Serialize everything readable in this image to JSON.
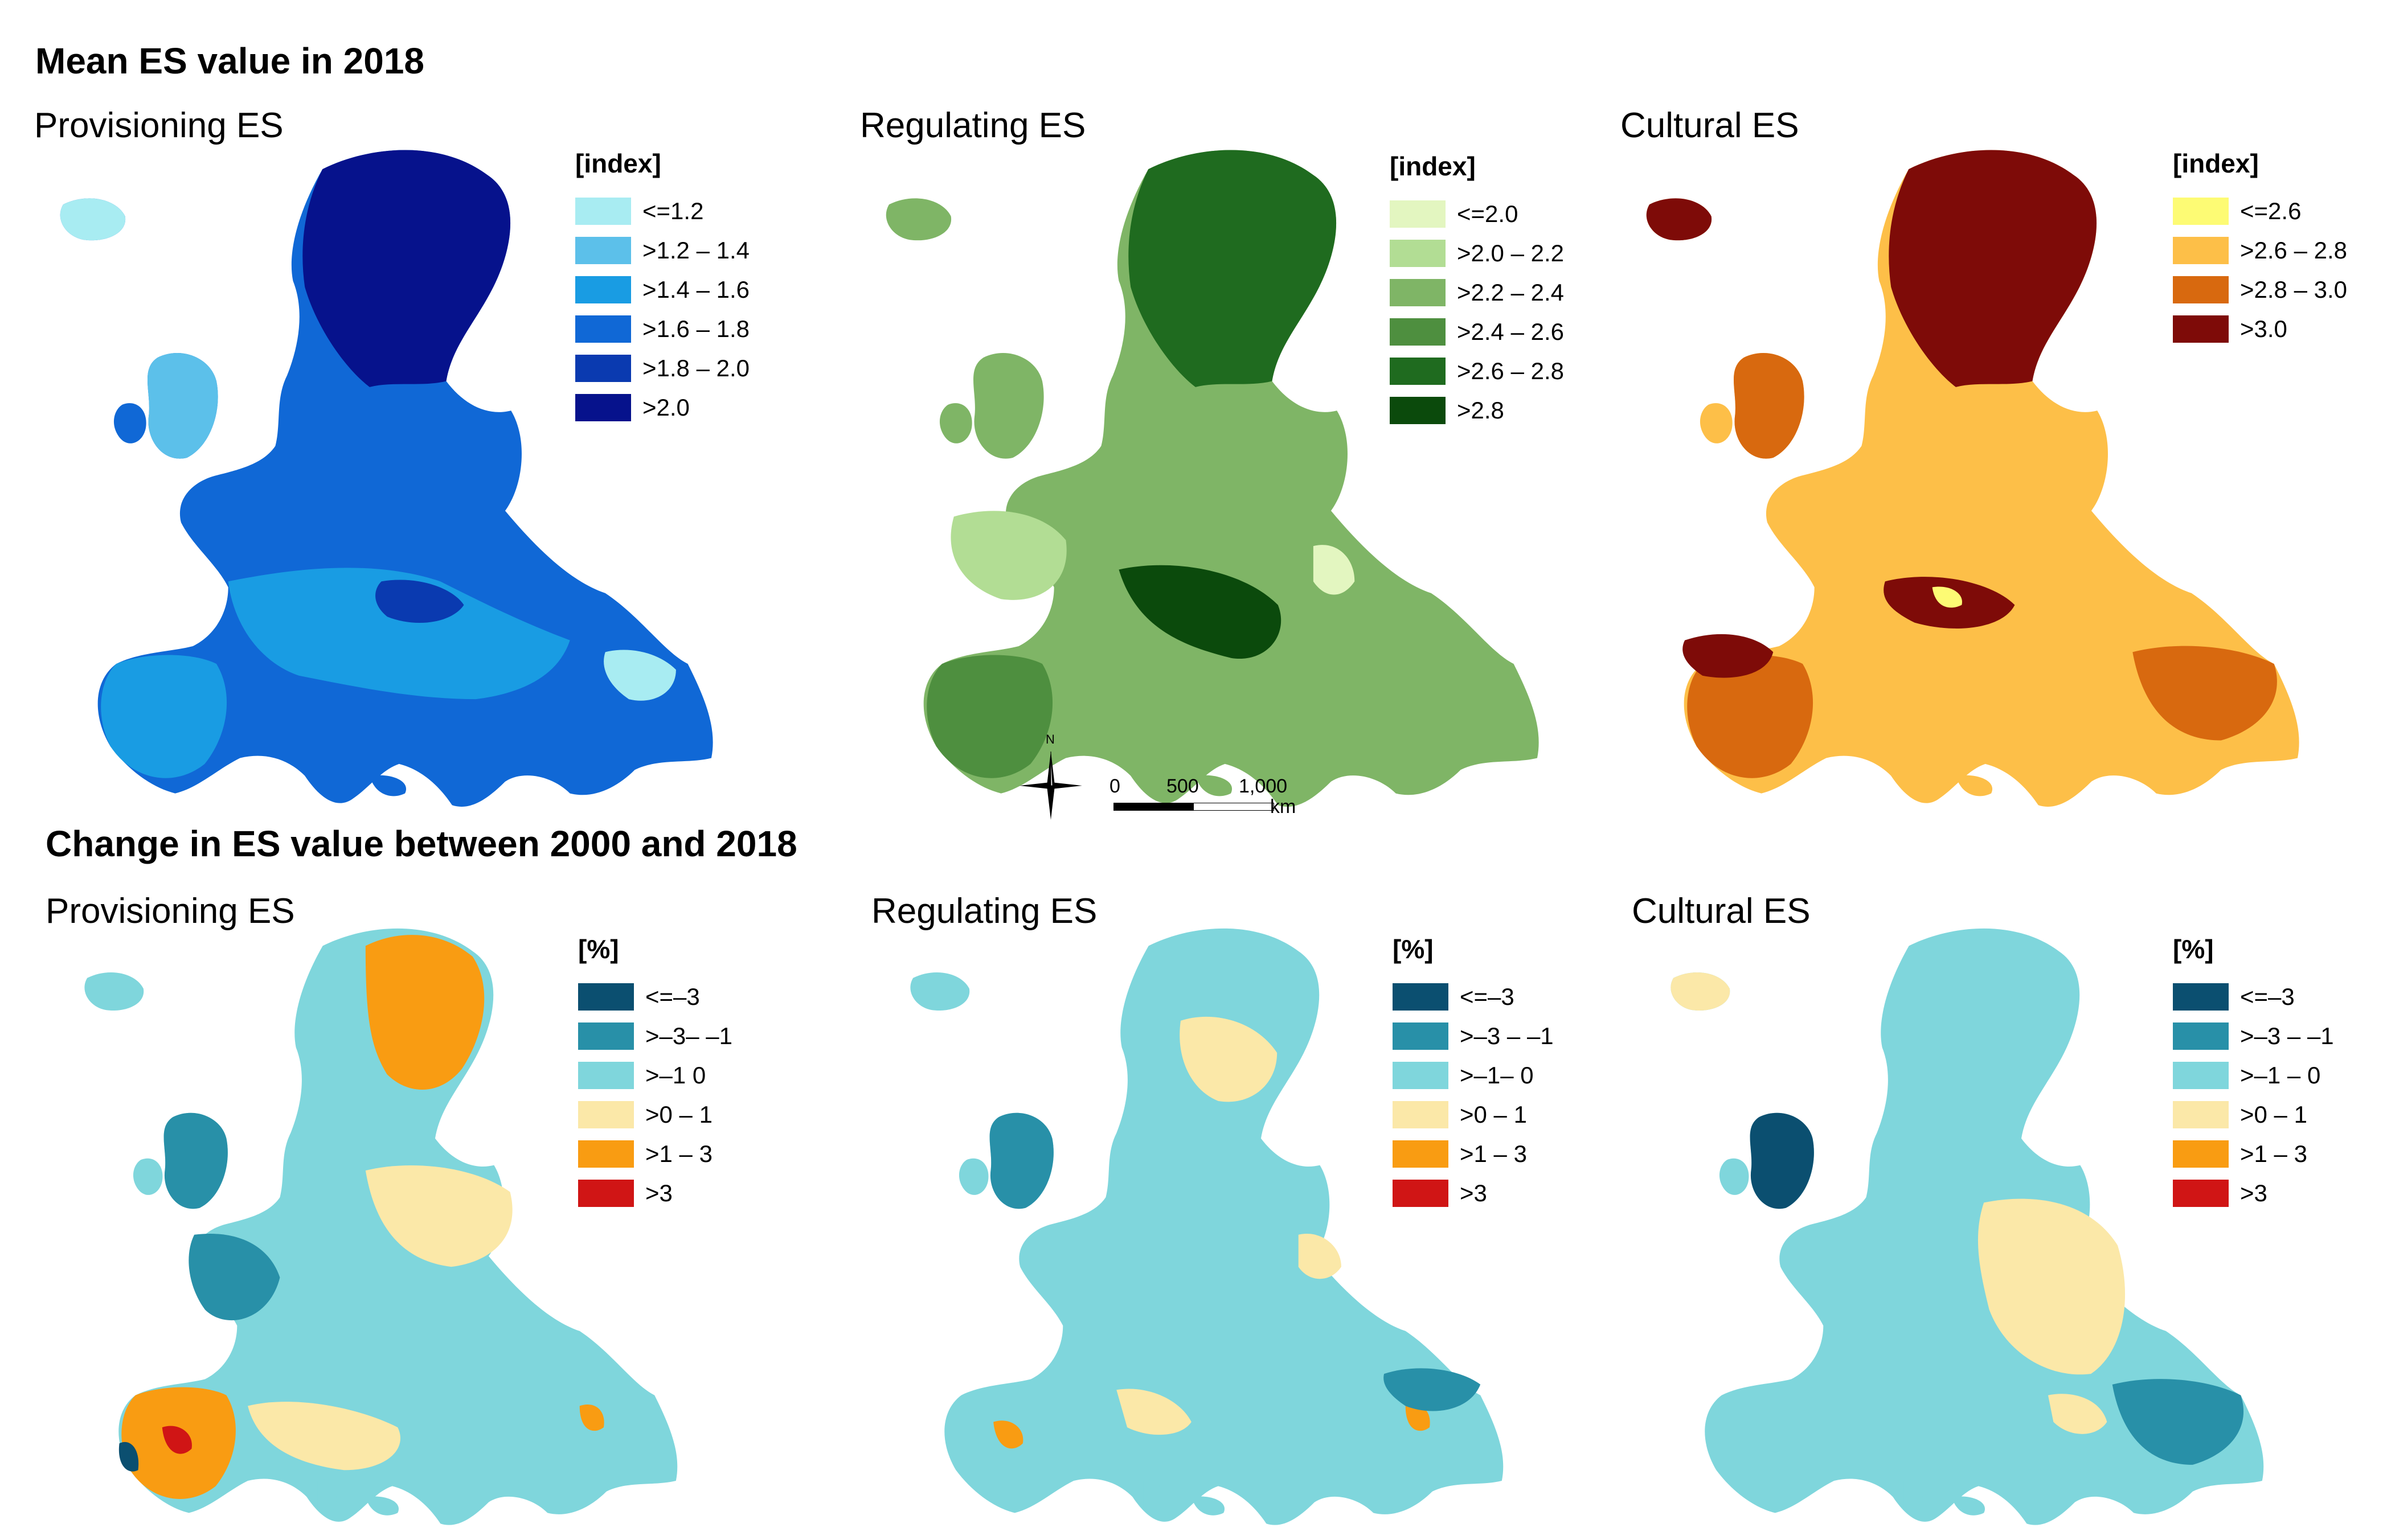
{
  "figure": {
    "title_top": "Mean ES value in 2018",
    "title_bottom": "Change in ES value between 2000 and 2018"
  },
  "colors": {
    "provisioning_2018": [
      "#a8ecf2",
      "#5cc0ea",
      "#199ce3",
      "#1068d6",
      "#0a3ab0",
      "#06128c"
    ],
    "regulating_2018": [
      "#e3f6c0",
      "#b2dd94",
      "#7fb566",
      "#4e8f3f",
      "#1f6b1f",
      "#0b4a0c"
    ],
    "cultural_2018": [
      "#fdfb74",
      "#fdbf48",
      "#d8690f",
      "#7e0b08"
    ],
    "change": [
      "#0b4f70",
      "#2890a8",
      "#7fd6dc",
      "#fbe8a8",
      "#f99c12",
      "#d01515"
    ]
  },
  "top_row": {
    "legend_header": "[index]",
    "panels": [
      {
        "title": "Provisioning ES",
        "legend": [
          "<=1.2",
          ">1.2 – 1.4",
          ">1.4 – 1.6",
          ">1.6 – 1.8",
          ">1.8 – 2.0",
          ">2.0"
        ]
      },
      {
        "title": "Regulating ES",
        "legend": [
          "<=2.0",
          ">2.0 – 2.2",
          ">2.2 – 2.4",
          ">2.4 – 2.6",
          ">2.6 – 2.8",
          ">2.8"
        ]
      },
      {
        "title": "Cultural ES",
        "legend": [
          "<=2.6",
          ">2.6 – 2.8",
          ">2.8 – 3.0",
          ">3.0"
        ]
      }
    ]
  },
  "bottom_row": {
    "legend_header": "[%]",
    "panels": [
      {
        "title": "Provisioning ES",
        "legend": [
          "<=–3",
          ">–3– –1",
          ">–1 0",
          ">0 – 1",
          ">1 – 3",
          ">3"
        ]
      },
      {
        "title": "Regulating ES",
        "legend": [
          "<=–3",
          ">–3 – –1",
          ">–1– 0",
          ">0 – 1",
          ">1 – 3",
          ">3"
        ]
      },
      {
        "title": "Cultural ES",
        "legend": [
          "<=–3",
          ">–3 – –1",
          ">–1 – 0",
          ">0 – 1",
          ">1 – 3",
          ">3"
        ]
      }
    ]
  },
  "scale": {
    "north": "N",
    "tick_0": "0",
    "tick_500": "500",
    "tick_1000": "1,000",
    "unit": "km"
  }
}
